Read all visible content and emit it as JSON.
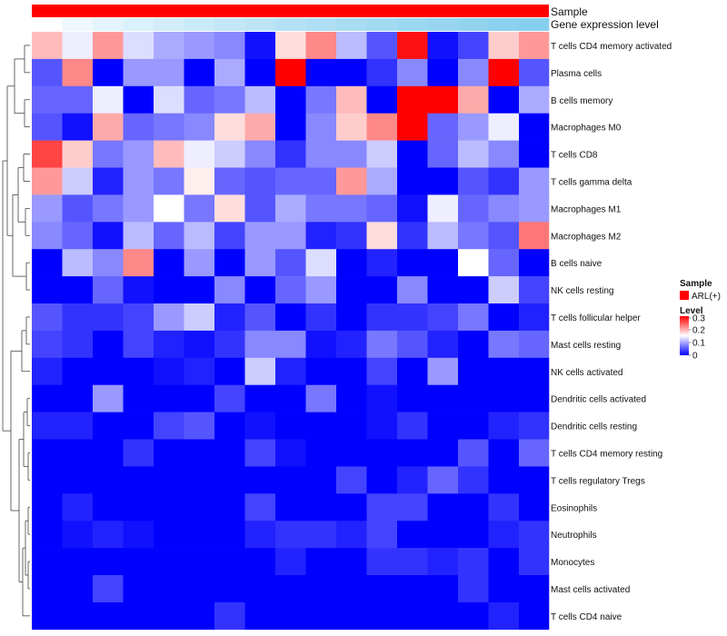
{
  "chart_data": {
    "type": "heatmap",
    "annotations": [
      {
        "name": "Sample",
        "color": "#ff0000"
      },
      {
        "name": "Gene expression level",
        "gradient": [
          "#ffffff",
          "#87cfee"
        ]
      }
    ],
    "rows": [
      "T cells CD4 memory activated",
      "Plasma cells",
      "B cells memory",
      "Macrophages M0",
      "T cells CD8",
      "T cells gamma delta",
      "Macrophages M1",
      "Macrophages M2",
      "B cells naive",
      "NK cells resting",
      "T cells follicular helper",
      "Mast cells resting",
      "NK cells activated",
      "Dendritic cells activated",
      "Dendritic cells resting",
      "T cells CD4 memory resting",
      "T cells regulatory  Tregs",
      "Eosinophils",
      "Neutrophils",
      "Monocytes",
      "Mast cells activated",
      "T cells CD4 naive"
    ],
    "n_columns": 17,
    "values": [
      [
        0.19,
        0.14,
        0.21,
        0.13,
        0.1,
        0.09,
        0.08,
        0.01,
        0.17,
        0.22,
        0.11,
        0.05,
        0.29,
        0.01,
        0.04,
        0.18,
        0.21
      ],
      [
        0.05,
        0.22,
        0.0,
        0.09,
        0.09,
        0.0,
        0.1,
        0.0,
        0.3,
        0.0,
        0.0,
        0.03,
        0.08,
        0.0,
        0.08,
        0.3,
        0.05
      ],
      [
        0.06,
        0.06,
        0.14,
        0.0,
        0.13,
        0.06,
        0.07,
        0.11,
        0.0,
        0.07,
        0.19,
        0.0,
        0.3,
        0.3,
        0.2,
        0.0,
        0.1
      ],
      [
        0.05,
        0.01,
        0.2,
        0.06,
        0.07,
        0.08,
        0.17,
        0.2,
        0.0,
        0.08,
        0.18,
        0.22,
        0.3,
        0.06,
        0.09,
        0.14,
        0.0
      ],
      [
        0.26,
        0.18,
        0.07,
        0.09,
        0.19,
        0.14,
        0.12,
        0.08,
        0.03,
        0.08,
        0.08,
        0.12,
        0.0,
        0.06,
        0.11,
        0.08,
        0.0
      ],
      [
        0.21,
        0.12,
        0.02,
        0.09,
        0.07,
        0.16,
        0.06,
        0.05,
        0.06,
        0.06,
        0.21,
        0.1,
        0.0,
        0.0,
        0.05,
        0.03,
        0.09
      ],
      [
        0.09,
        0.05,
        0.07,
        0.09,
        0.15,
        0.07,
        0.17,
        0.05,
        0.1,
        0.07,
        0.07,
        0.06,
        0.01,
        0.14,
        0.06,
        0.08,
        0.09
      ],
      [
        0.08,
        0.06,
        0.01,
        0.11,
        0.06,
        0.11,
        0.04,
        0.09,
        0.09,
        0.02,
        0.03,
        0.17,
        0.03,
        0.11,
        0.07,
        0.05,
        0.23
      ],
      [
        0.0,
        0.11,
        0.08,
        0.22,
        0.0,
        0.09,
        0.0,
        0.09,
        0.05,
        0.13,
        0.0,
        0.02,
        0.0,
        0.0,
        0.15,
        0.06,
        0.0
      ],
      [
        0.0,
        0.0,
        0.06,
        0.01,
        0.0,
        0.0,
        0.08,
        0.0,
        0.06,
        0.09,
        0.0,
        0.0,
        0.08,
        0.0,
        0.0,
        0.12,
        0.04
      ],
      [
        0.05,
        0.03,
        0.03,
        0.04,
        0.09,
        0.12,
        0.02,
        0.05,
        0.0,
        0.03,
        0.0,
        0.03,
        0.03,
        0.04,
        0.07,
        0.0,
        0.02
      ],
      [
        0.04,
        0.03,
        0.0,
        0.04,
        0.02,
        0.01,
        0.03,
        0.08,
        0.08,
        0.01,
        0.02,
        0.07,
        0.05,
        0.02,
        0.0,
        0.07,
        0.06
      ],
      [
        0.02,
        0.0,
        0.0,
        0.0,
        0.01,
        0.02,
        0.0,
        0.12,
        0.02,
        0.0,
        0.0,
        0.04,
        0.0,
        0.09,
        0.0,
        0.0,
        0.0
      ],
      [
        0.0,
        0.0,
        0.09,
        0.0,
        0.0,
        0.0,
        0.04,
        0.0,
        0.0,
        0.07,
        0.0,
        0.01,
        0.0,
        0.0,
        0.0,
        0.0,
        0.0
      ],
      [
        0.02,
        0.02,
        0.0,
        0.0,
        0.04,
        0.05,
        0.0,
        0.01,
        0.0,
        0.0,
        0.0,
        0.01,
        0.03,
        0.0,
        0.0,
        0.02,
        0.03
      ],
      [
        0.0,
        0.0,
        0.0,
        0.03,
        0.0,
        0.0,
        0.0,
        0.04,
        0.01,
        0.0,
        0.0,
        0.0,
        0.0,
        0.0,
        0.05,
        0.0,
        0.06
      ],
      [
        0.0,
        0.0,
        0.0,
        0.0,
        0.0,
        0.0,
        0.0,
        0.0,
        0.0,
        0.0,
        0.04,
        0.0,
        0.02,
        0.06,
        0.03,
        0.0,
        0.0
      ],
      [
        0.0,
        0.02,
        0.0,
        0.0,
        0.0,
        0.0,
        0.0,
        0.04,
        0.0,
        0.0,
        0.0,
        0.04,
        0.04,
        0.0,
        0.0,
        0.03,
        0.0
      ],
      [
        0.0,
        0.01,
        0.02,
        0.01,
        0.0,
        0.0,
        0.0,
        0.02,
        0.03,
        0.03,
        0.02,
        0.04,
        0.0,
        0.0,
        0.0,
        0.02,
        0.03
      ],
      [
        0.0,
        0.0,
        0.0,
        0.0,
        0.0,
        0.0,
        0.0,
        0.0,
        0.02,
        0.0,
        0.0,
        0.03,
        0.03,
        0.02,
        0.03,
        0.0,
        0.03
      ],
      [
        0.0,
        0.0,
        0.04,
        0.0,
        0.0,
        0.0,
        0.0,
        0.0,
        0.0,
        0.0,
        0.0,
        0.0,
        0.0,
        0.0,
        0.03,
        0.0,
        0.0
      ],
      [
        0.0,
        0.0,
        0.0,
        0.0,
        0.0,
        0.0,
        0.03,
        0.0,
        0.0,
        0.0,
        0.0,
        0.0,
        0.0,
        0.0,
        0.0,
        0.02,
        0.0
      ]
    ],
    "color_scale": {
      "min": 0,
      "mid": 0.15,
      "max": 0.3,
      "low_color": "#0000ff",
      "mid_color": "#ffffff",
      "high_color": "#ff0000"
    },
    "legend": {
      "position": "right",
      "sample_title": "Sample",
      "sample_entry": "ARL(+)",
      "level_title": "Level",
      "level_ticks": [
        "0.3",
        "0.2",
        "0.1",
        "0"
      ]
    },
    "row_dendrogram": true
  }
}
